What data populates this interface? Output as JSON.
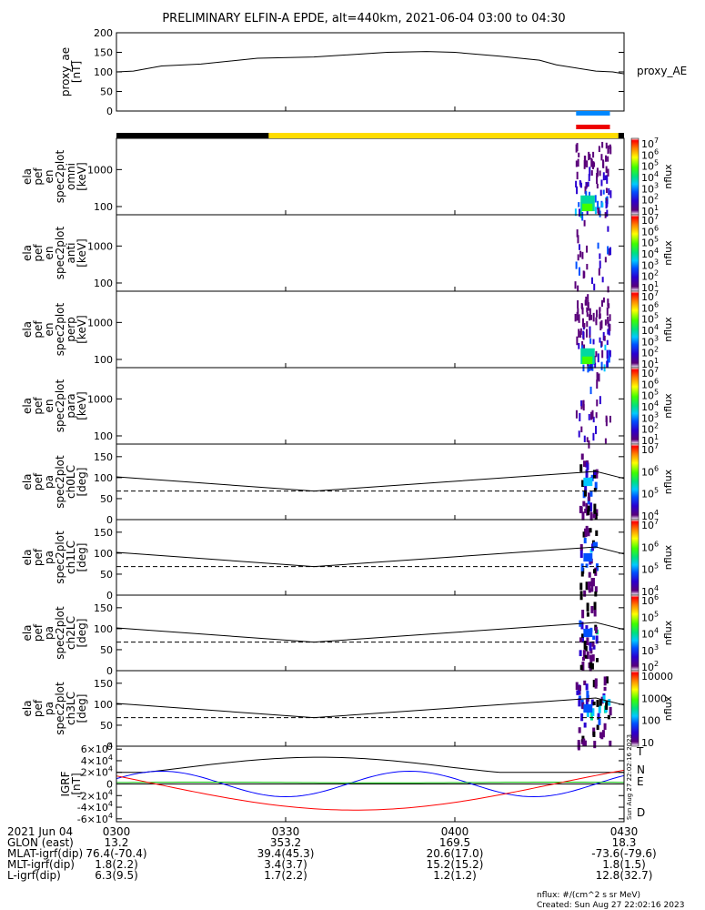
{
  "chart_data": {
    "type": "spectrogram",
    "title": "PRELIMINARY ELFIN-A EPDE, alt=440km, 2021-06-04 03:00 to 04:30",
    "time_range": [
      "03:00",
      "04:30"
    ],
    "panels": [
      {
        "id": "proxy_ae",
        "type": "line",
        "ylabel": [
          "proxy_ae",
          "[nT]"
        ],
        "legend": "proxy_AE",
        "ylim": [
          0,
          200
        ],
        "yticks": [
          "0",
          "50",
          "100",
          "150",
          "200"
        ],
        "x": [
          0,
          3,
          8,
          15,
          25,
          35,
          48,
          55,
          60,
          68,
          75,
          78,
          85,
          88,
          90
        ],
        "y": [
          100,
          102,
          115,
          120,
          135,
          138,
          150,
          152,
          150,
          140,
          130,
          118,
          102,
          100,
          95
        ]
      },
      {
        "id": "en_spec2plot_omni",
        "type": "heatmap",
        "ylabel": [
          "ela",
          "pef",
          "en",
          "spec2plot",
          "omni",
          "[keV]"
        ],
        "ylog": true,
        "ylim": [
          60,
          7000
        ],
        "yticks": [
          "100",
          "1000"
        ],
        "colorbar": {
          "label": "nflux",
          "ticks": [
            "10^7",
            "10^6",
            "10^5",
            "10^4",
            "10^3",
            "10^2",
            "10^1"
          ]
        }
      },
      {
        "id": "en_spec2plot_anti",
        "type": "heatmap",
        "ylabel": [
          "ela",
          "pef",
          "en",
          "spec2plot",
          "anti",
          "[keV]"
        ],
        "ylog": true,
        "ylim": [
          60,
          7000
        ],
        "yticks": [
          "100",
          "1000"
        ],
        "colorbar": {
          "label": "nflux",
          "ticks": [
            "10^7",
            "10^6",
            "10^5",
            "10^4",
            "10^3",
            "10^2",
            "10^1"
          ]
        }
      },
      {
        "id": "en_spec2plot_perp",
        "type": "heatmap",
        "ylabel": [
          "ela",
          "pef",
          "en",
          "spec2plot",
          "perp",
          "[keV]"
        ],
        "ylog": true,
        "ylim": [
          60,
          7000
        ],
        "yticks": [
          "100",
          "1000"
        ],
        "colorbar": {
          "label": "nflux",
          "ticks": [
            "10^7",
            "10^6",
            "10^5",
            "10^4",
            "10^3",
            "10^2",
            "10^1"
          ]
        }
      },
      {
        "id": "en_spec2plot_para",
        "type": "heatmap",
        "ylabel": [
          "ela",
          "pef",
          "en",
          "spec2plot",
          "para",
          "[keV]"
        ],
        "ylog": true,
        "ylim": [
          60,
          7000
        ],
        "yticks": [
          "100",
          "1000"
        ],
        "colorbar": {
          "label": "nflux",
          "ticks": [
            "10^7",
            "10^6",
            "10^5",
            "10^4",
            "10^3",
            "10^2",
            "10^1"
          ]
        }
      },
      {
        "id": "pa_spec2plot_ch0LC",
        "type": "heatmap",
        "ylabel": [
          "ela",
          "pef",
          "pa",
          "spec2plot",
          "ch0LC",
          "[deg]"
        ],
        "ylim": [
          0,
          180
        ],
        "yticks": [
          "0",
          "50",
          "100",
          "150"
        ],
        "colorbar": {
          "label": "nflux",
          "ticks": [
            "10^7",
            "10^6",
            "10^5",
            "10^4"
          ]
        }
      },
      {
        "id": "pa_spec2plot_ch1LC",
        "type": "heatmap",
        "ylabel": [
          "ela",
          "pef",
          "pa",
          "spec2plot",
          "ch1LC",
          "[deg]"
        ],
        "ylim": [
          0,
          180
        ],
        "yticks": [
          "0",
          "50",
          "100",
          "150"
        ],
        "colorbar": {
          "label": "nflux",
          "ticks": [
            "10^7",
            "10^6",
            "10^5",
            "10^4"
          ]
        }
      },
      {
        "id": "pa_spec2plot_ch2LC",
        "type": "heatmap",
        "ylabel": [
          "ela",
          "pef",
          "pa",
          "spec2plot",
          "ch2LC",
          "[deg]"
        ],
        "ylim": [
          0,
          180
        ],
        "yticks": [
          "0",
          "50",
          "100",
          "150"
        ],
        "colorbar": {
          "label": "nflux",
          "ticks": [
            "10^6",
            "10^5",
            "10^4",
            "10^3",
            "10^2"
          ]
        }
      },
      {
        "id": "pa_spec2plot_ch3LC",
        "type": "heatmap",
        "ylabel": [
          "ela",
          "pef",
          "pa",
          "spec2plot",
          "ch3LC",
          "[deg]"
        ],
        "ylim": [
          0,
          180
        ],
        "yticks": [
          "0",
          "50",
          "100",
          "150"
        ],
        "colorbar": {
          "label": "nflux",
          "ticks": [
            "10000",
            "1000",
            "100",
            "10"
          ]
        }
      },
      {
        "id": "IGRF",
        "type": "line",
        "ylabel": [
          "IGRF",
          "[nT]"
        ],
        "ylim": [
          -65000,
          65000
        ],
        "yticks": [
          "-6×10^4",
          "-4×10^4",
          "-2×10^4",
          "0",
          "2×10^4",
          "4×10^4",
          "6×10^4"
        ],
        "components": [
          {
            "name": "T",
            "color": "#000000"
          },
          {
            "name": "N",
            "color": "#0000ff"
          },
          {
            "name": "E",
            "color": "#00bb00"
          },
          {
            "name": "D",
            "color": "#ff0000"
          }
        ]
      }
    ],
    "xticks": [
      "0300",
      "0330",
      "0400",
      "0430"
    ],
    "ephemeris": {
      "date_label": "2021 Jun 04",
      "rows": [
        {
          "label": "GLON (east)",
          "values": [
            "13.2",
            "353.2",
            "169.5",
            "18.3"
          ]
        },
        {
          "label": "MLAT-igrf(dip)",
          "values": [
            "76.4(-70.4)",
            "39.4(45.3)",
            "20.6(17.0)",
            "-73.6(-79.6)"
          ]
        },
        {
          "label": "MLT-igrf(dip)",
          "values": [
            "1.8(2.2)",
            "3.4(3.7)",
            "15.2(15.2)",
            "1.8(1.5)"
          ]
        },
        {
          "label": "L-igrf(dip)",
          "values": [
            "6.3(9.5)",
            "1.7(2.2)",
            "1.2(1.2)",
            "12.8(32.7)"
          ]
        }
      ]
    },
    "footer": {
      "units": "nflux: #/(cm^2 s sr MeV)",
      "created": "Created: Sun Aug 27 22:02:16 2023"
    }
  },
  "colors": {
    "sunlit": "#ffdd00",
    "eclipse": "#000000",
    "science_blue": "#0088ff",
    "science_red": "#ee0000"
  }
}
